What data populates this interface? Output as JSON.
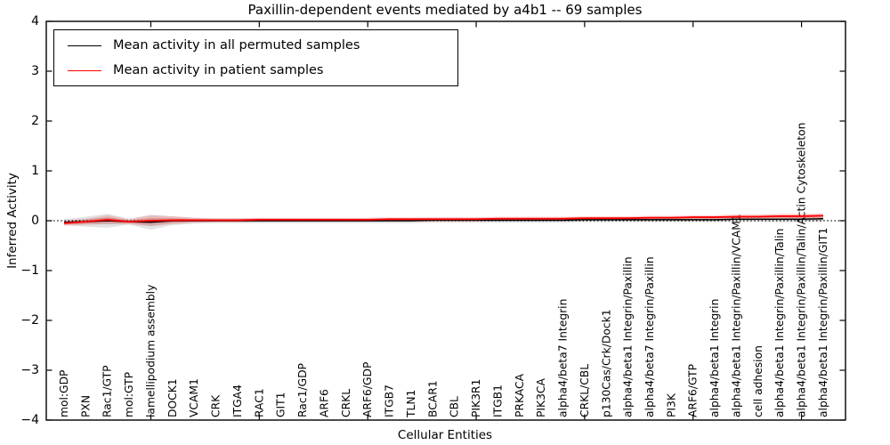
{
  "chart_data": {
    "type": "line",
    "title": "Paxillin-dependent events mediated by a4b1 -- 69 samples",
    "xlabel": "Cellular Entities",
    "ylabel": "Inferred Activity",
    "ylim": [
      -4,
      4
    ],
    "yticks": [
      4,
      3,
      2,
      1,
      0,
      -1,
      -2,
      -3,
      -4
    ],
    "ytick_labels": [
      "4",
      "3",
      "2",
      "1",
      "0",
      "−1",
      "−2",
      "−3",
      "−4"
    ],
    "grid": false,
    "zero_line": "dotted black at y=0",
    "legend_position": "upper left",
    "x_tick_label_rotation": 90,
    "categories": [
      "mol:GDP",
      "PXN",
      "Rac1/GTP",
      "mol:GTP",
      "lamellipodium assembly",
      "DOCK1",
      "VCAM1",
      "CRK",
      "ITGA4",
      "RAC1",
      "GIT1",
      "Rac1/GDP",
      "ARF6",
      "CRKL",
      "ARF6/GDP",
      "ITGB7",
      "TLN1",
      "BCAR1",
      "CBL",
      "PIK3R1",
      "ITGB1",
      "PRKACA",
      "PIK3CA",
      "alpha4/beta7 Integrin",
      "CRKL/CBL",
      "p130Cas/Crk/Dock1",
      "alpha4/beta1 Integrin/Paxillin",
      "alpha4/beta7 Integrin/Paxillin",
      "PI3K",
      "ARF6/GTP",
      "alpha4/beta1 Integrin",
      "alpha4/beta1 Integrin/Paxillin/VCAM1",
      "cell adhesion",
      "alpha4/beta1 Integrin/Paxillin/Talin",
      "alpha4/beta1 Integrin/Paxillin/Talin/Actin Cytoskeleton",
      "alpha4/beta1 Integrin/Paxillin/GIT1"
    ],
    "series": [
      {
        "name": "Mean activity in all permuted samples",
        "color": "#000000",
        "band_color": "rgba(0,0,0,0.11)",
        "line_width": 1.4,
        "values": [
          -0.03,
          -0.02,
          0.0,
          -0.02,
          -0.03,
          0.0,
          0.0,
          0.0,
          0.0,
          0.0,
          0.0,
          0.0,
          0.0,
          0.0,
          0.0,
          0.0,
          0.0,
          0.01,
          0.01,
          0.01,
          0.01,
          0.01,
          0.01,
          0.01,
          0.02,
          0.02,
          0.02,
          0.02,
          0.02,
          0.02,
          0.02,
          0.03,
          0.03,
          0.03,
          0.03,
          0.04
        ],
        "band": [
          0.06,
          0.1,
          0.14,
          0.06,
          0.15,
          0.09,
          0.06,
          0.05,
          0.05,
          0.05,
          0.05,
          0.05,
          0.05,
          0.05,
          0.05,
          0.05,
          0.05,
          0.05,
          0.05,
          0.05,
          0.05,
          0.05,
          0.05,
          0.05,
          0.05,
          0.05,
          0.05,
          0.05,
          0.05,
          0.05,
          0.05,
          0.05,
          0.05,
          0.06,
          0.06,
          0.06
        ]
      },
      {
        "name": "Mean activity in patient samples",
        "color": "#ff0000",
        "band_color": "rgba(255,0,0,0.16)",
        "line_width": 1.8,
        "values": [
          -0.05,
          -0.02,
          0.02,
          -0.02,
          0.0,
          0.01,
          0.01,
          0.01,
          0.01,
          0.02,
          0.02,
          0.02,
          0.02,
          0.02,
          0.02,
          0.03,
          0.03,
          0.03,
          0.03,
          0.03,
          0.04,
          0.04,
          0.04,
          0.04,
          0.05,
          0.05,
          0.05,
          0.06,
          0.06,
          0.07,
          0.07,
          0.08,
          0.08,
          0.09,
          0.09,
          0.1
        ],
        "band": [
          0.05,
          0.06,
          0.09,
          0.05,
          0.11,
          0.08,
          0.05,
          0.04,
          0.04,
          0.04,
          0.04,
          0.04,
          0.04,
          0.04,
          0.04,
          0.04,
          0.04,
          0.04,
          0.04,
          0.04,
          0.04,
          0.04,
          0.04,
          0.04,
          0.04,
          0.04,
          0.04,
          0.04,
          0.04,
          0.04,
          0.04,
          0.05,
          0.05,
          0.05,
          0.05,
          0.05
        ]
      }
    ]
  }
}
